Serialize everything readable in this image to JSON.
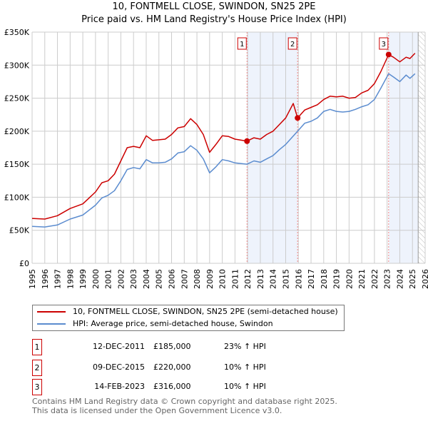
{
  "chart_data": {
    "type": "line",
    "title": "10, FONTMELL CLOSE, SWINDON, SN25 2PE",
    "subtitle": "Price paid vs. HM Land Registry's House Price Index (HPI)",
    "xlim": [
      1995,
      2026
    ],
    "ylim": [
      0,
      350000
    ],
    "yticks": [
      0,
      50000,
      100000,
      150000,
      200000,
      250000,
      300000,
      350000
    ],
    "ytick_labels": [
      "£0",
      "£50K",
      "£100K",
      "£150K",
      "£200K",
      "£250K",
      "£300K",
      "£350K"
    ],
    "xticks": [
      1995,
      1996,
      1997,
      1998,
      1999,
      2000,
      2001,
      2002,
      2003,
      2004,
      2005,
      2006,
      2007,
      2008,
      2009,
      2010,
      2011,
      2012,
      2013,
      2014,
      2015,
      2016,
      2017,
      2018,
      2019,
      2020,
      2021,
      2022,
      2023,
      2024,
      2025,
      2026
    ],
    "grid": true,
    "data_end": 2025.45,
    "series": [
      {
        "name": "10, FONTMELL CLOSE, SWINDON, SN25 2PE (semi-detached house)",
        "color": "#cc0000",
        "x": [
          1995,
          1996,
          1997,
          1998,
          1999,
          2000,
          2000.5,
          2001,
          2001.5,
          2002,
          2002.5,
          2003,
          2003.5,
          2004,
          2004.5,
          2005,
          2005.5,
          2006,
          2006.5,
          2007,
          2007.5,
          2008,
          2008.5,
          2009,
          2009.5,
          2010,
          2010.5,
          2011,
          2011.95,
          2012.5,
          2013,
          2013.5,
          2014,
          2014.5,
          2015,
          2015.6,
          2015.94,
          2016.5,
          2017,
          2017.5,
          2018,
          2018.5,
          2019,
          2019.5,
          2020,
          2020.5,
          2021,
          2021.5,
          2022,
          2022.5,
          2023.12,
          2023.5,
          2024,
          2024.5,
          2024.8,
          2025.2
        ],
        "y": [
          68000,
          67000,
          72000,
          83000,
          90000,
          108000,
          122000,
          125000,
          135000,
          155000,
          175000,
          177000,
          175000,
          193000,
          186000,
          187000,
          188000,
          195000,
          205000,
          207000,
          219000,
          210000,
          195000,
          168000,
          180000,
          193000,
          192000,
          188000,
          185000,
          190000,
          188000,
          195000,
          200000,
          210000,
          220000,
          242000,
          220000,
          232000,
          236000,
          240000,
          248000,
          253000,
          252000,
          253000,
          250000,
          251000,
          258000,
          262000,
          272000,
          290000,
          316000,
          312000,
          305000,
          312000,
          310000,
          318000
        ]
      },
      {
        "name": "HPI: Average price, semi-detached house, Swindon",
        "color": "#5b8ccf",
        "x": [
          1995,
          1996,
          1997,
          1998,
          1999,
          2000,
          2000.5,
          2001,
          2001.5,
          2002,
          2002.5,
          2003,
          2003.5,
          2004,
          2004.5,
          2005,
          2005.5,
          2006,
          2006.5,
          2007,
          2007.5,
          2008,
          2008.5,
          2009,
          2009.5,
          2010,
          2010.5,
          2011,
          2011.95,
          2012.5,
          2013,
          2013.5,
          2014,
          2014.5,
          2015,
          2015.94,
          2016.5,
          2017,
          2017.5,
          2018,
          2018.5,
          2019,
          2019.5,
          2020,
          2020.5,
          2021,
          2021.5,
          2022,
          2022.5,
          2023.12,
          2023.5,
          2024,
          2024.5,
          2024.8,
          2025.2
        ],
        "y": [
          56000,
          55000,
          58000,
          67000,
          73000,
          88000,
          99000,
          103000,
          110000,
          125000,
          142000,
          145000,
          143000,
          157000,
          152000,
          152000,
          153000,
          158000,
          167000,
          169000,
          178000,
          171000,
          158000,
          137000,
          146000,
          157000,
          155000,
          152000,
          150000,
          155000,
          153000,
          158000,
          163000,
          172000,
          180000,
          200000,
          212000,
          215000,
          220000,
          230000,
          233000,
          230000,
          229000,
          230000,
          233000,
          237000,
          240000,
          248000,
          265000,
          287000,
          282000,
          275000,
          285000,
          280000,
          287000
        ]
      }
    ],
    "sales": [
      {
        "label": "1",
        "x": 2011.95,
        "y": 185000,
        "date": "12-DEC-2011",
        "price": "£185,000",
        "hpi": "23% ↑ HPI"
      },
      {
        "label": "2",
        "x": 2015.94,
        "y": 220000,
        "date": "09-DEC-2015",
        "price": "£220,000",
        "hpi": "10% ↑ HPI"
      },
      {
        "label": "3",
        "x": 2023.12,
        "y": 316000,
        "date": "14-FEB-2023",
        "price": "£316,000",
        "hpi": "10% ↑ HPI"
      }
    ]
  },
  "legend": {
    "red_label": "10, FONTMELL CLOSE, SWINDON, SN25 2PE (semi-detached house)",
    "blue_label": "HPI: Average price, semi-detached house, Swindon"
  },
  "footer": {
    "line1": "Contains HM Land Registry data © Crown copyright and database right 2025.",
    "line2": "This data is licensed under the Open Government Licence v3.0."
  }
}
